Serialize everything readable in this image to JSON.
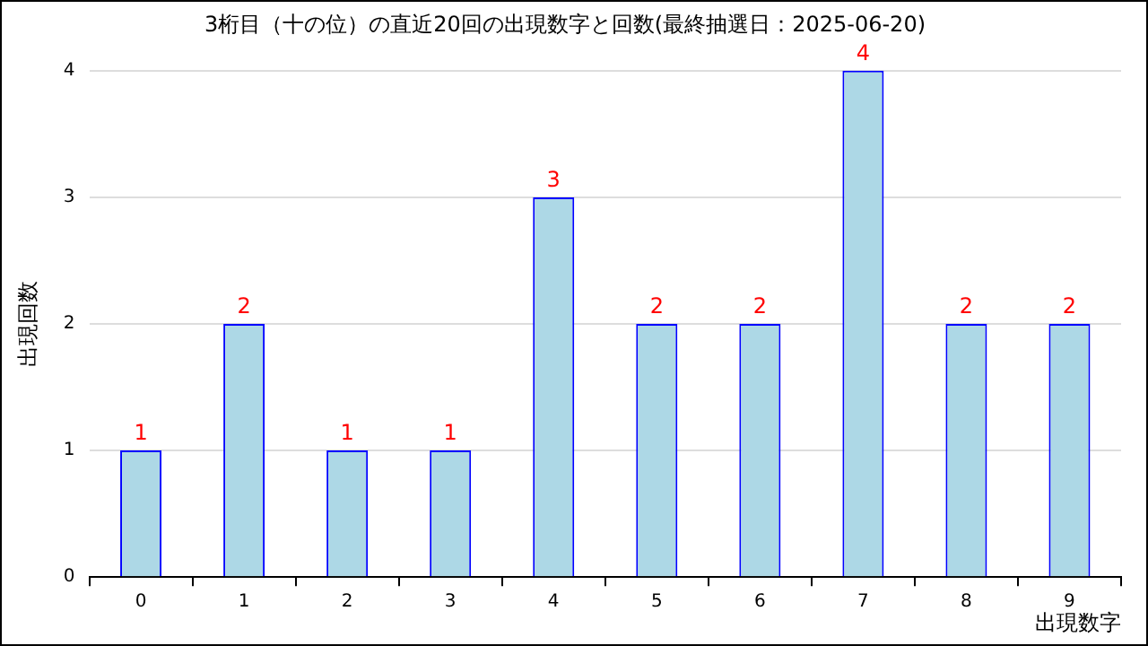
{
  "chart_data": {
    "type": "bar",
    "title": "3桁目（十の位）の直近20回の出現数字と回数(最終抽選日：2025-06-20)",
    "xlabel": "出現数字",
    "ylabel": "出現回数",
    "categories": [
      "0",
      "1",
      "2",
      "3",
      "4",
      "5",
      "6",
      "7",
      "8",
      "9"
    ],
    "values": [
      1,
      2,
      1,
      1,
      3,
      2,
      2,
      4,
      2,
      2
    ],
    "color": "#add8e6",
    "ylim": [
      0,
      4
    ],
    "yticks": [
      0,
      1,
      2,
      3,
      4
    ],
    "grid": "y",
    "data_labels": true,
    "legend": false
  }
}
